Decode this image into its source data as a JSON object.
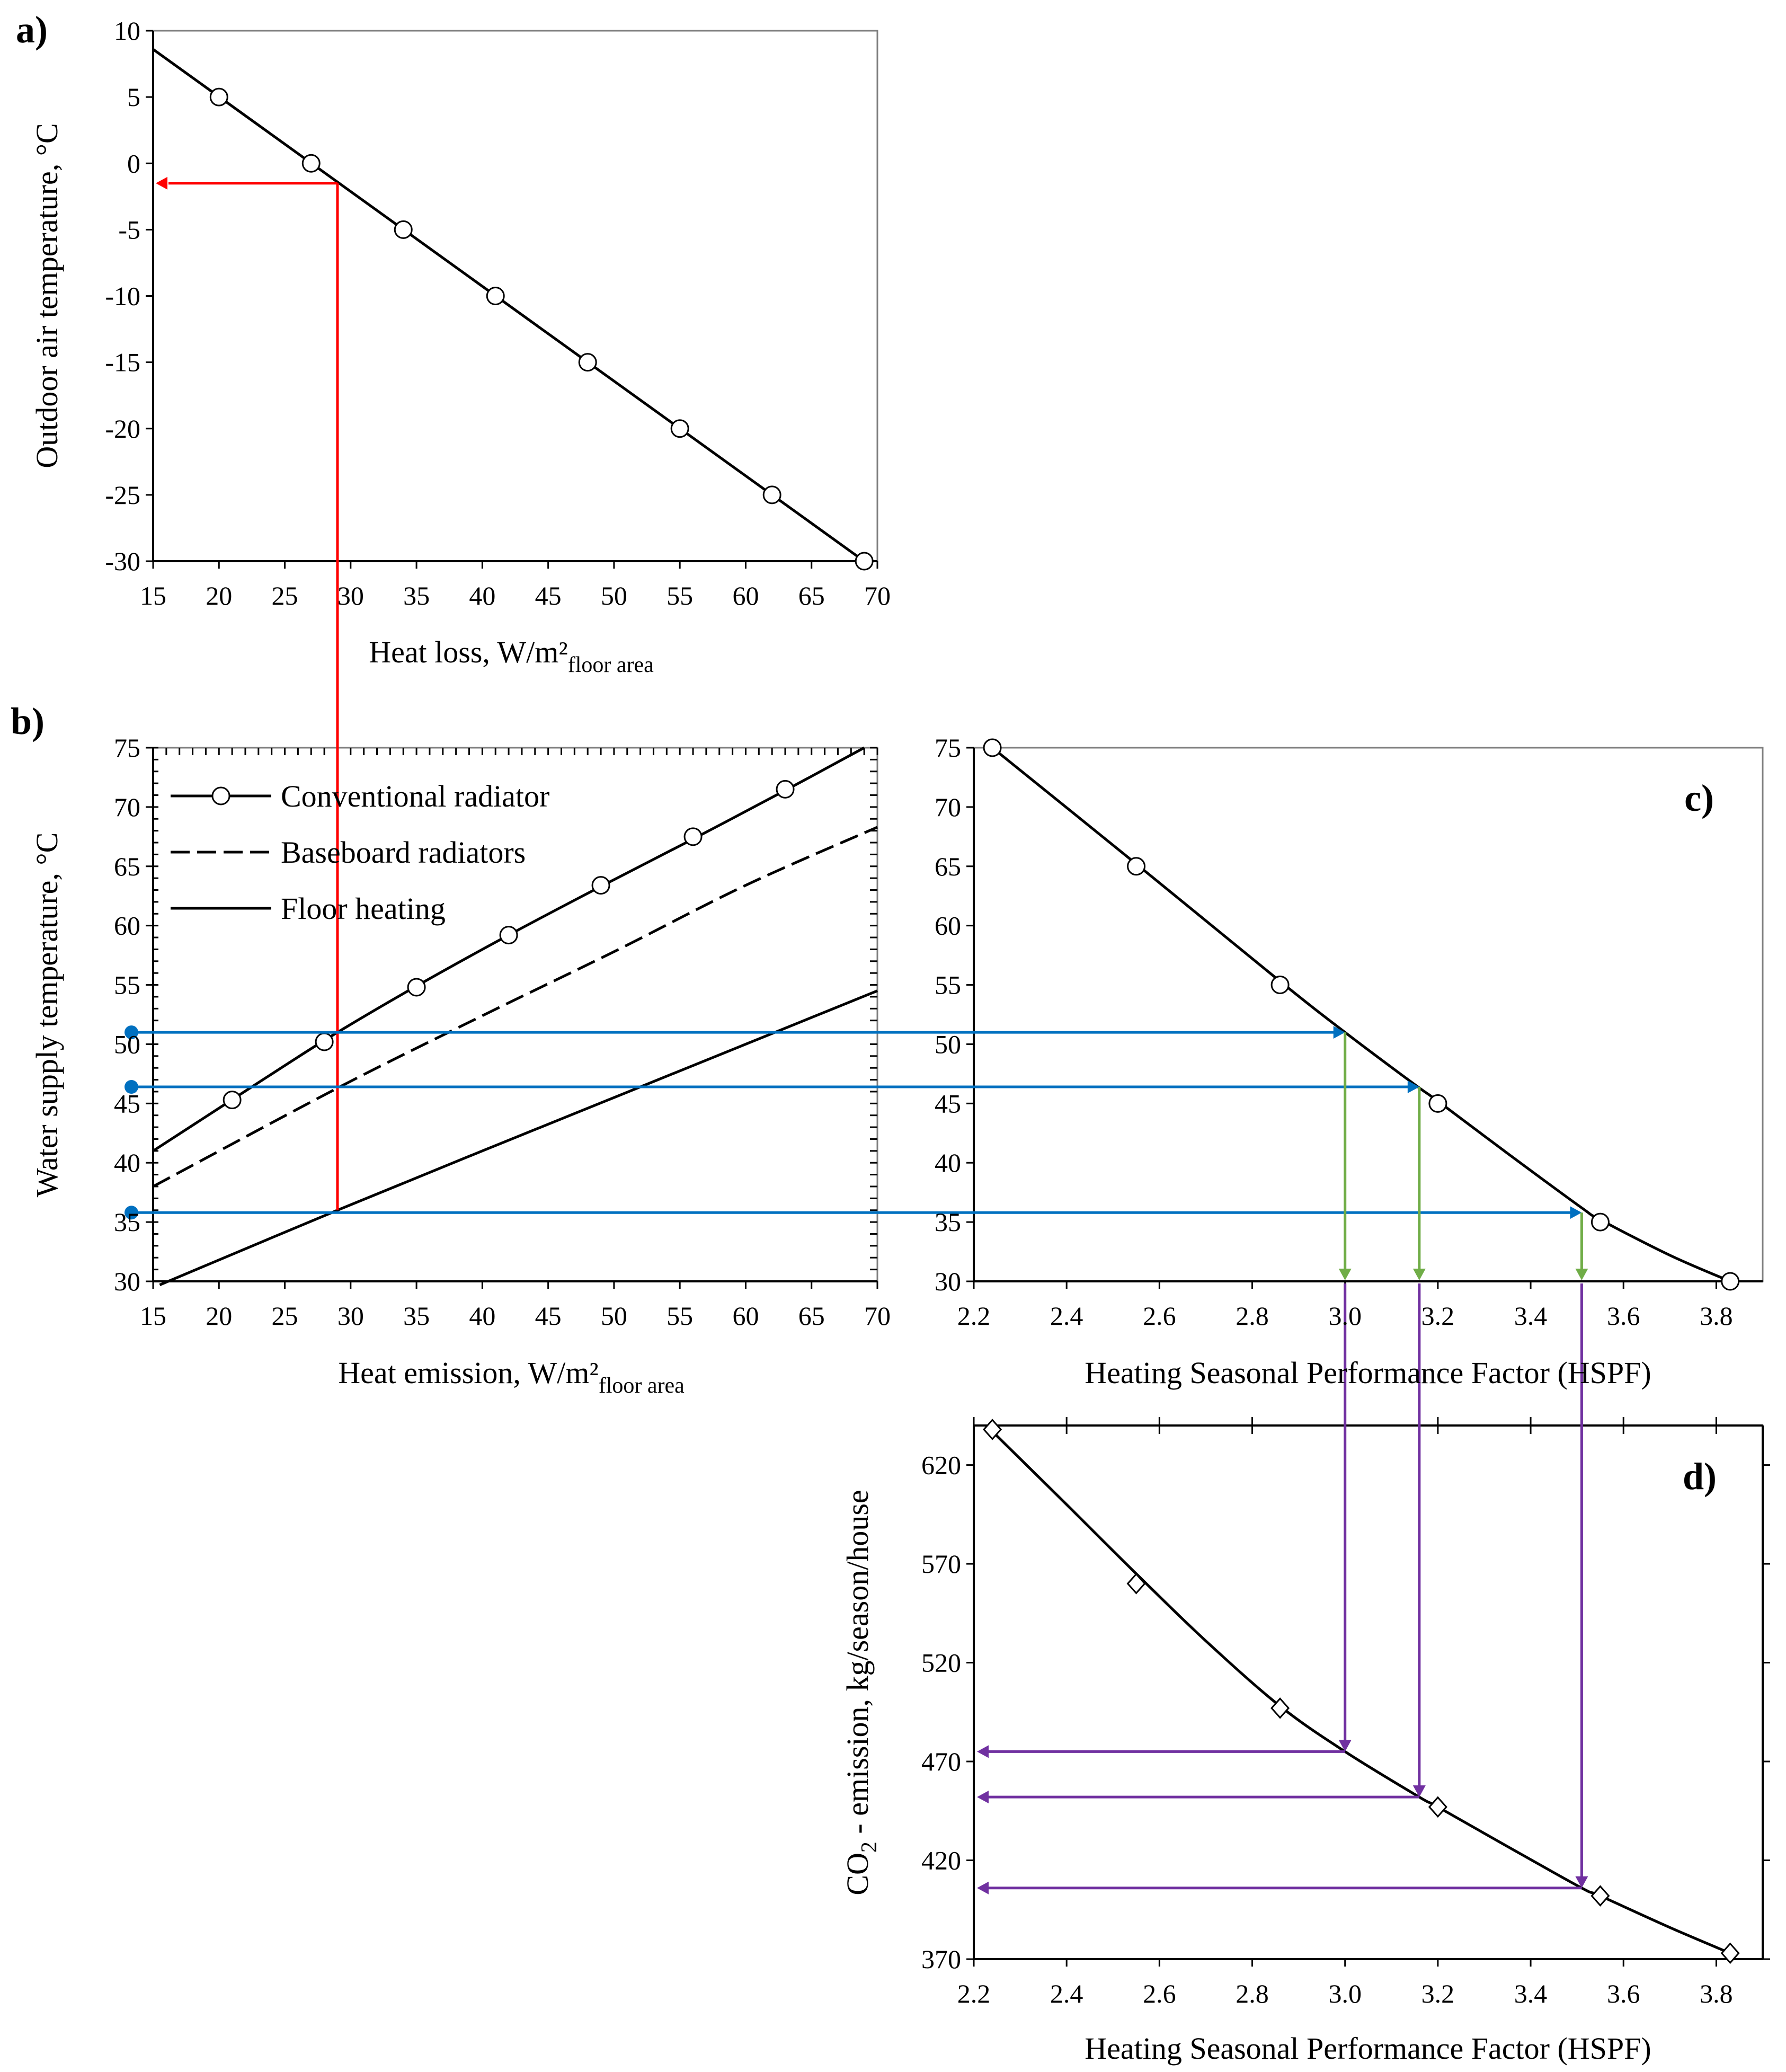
{
  "colors": {
    "red": "#ff0000",
    "blue": "#0070c0",
    "green": "#70ad47",
    "purple": "#7030a0",
    "line": "#000000"
  },
  "chart_data": [
    {
      "id": "a",
      "panel_label": "a)",
      "type": "line",
      "xlabel": "Heat loss, W/m²",
      "xlabel_sub": "floor area",
      "ylabel": "Outdoor air temperature, °C",
      "xlim": [
        15,
        70
      ],
      "ylim": [
        -30,
        10
      ],
      "xticks": [
        15,
        20,
        25,
        30,
        35,
        40,
        45,
        50,
        55,
        60,
        65,
        70
      ],
      "yticks": [
        -30,
        -25,
        -20,
        -15,
        -10,
        -5,
        0,
        5,
        10
      ],
      "series": [
        {
          "name": "Heat loss",
          "style": "solid",
          "marker": "circle",
          "line": [
            [
              15,
              8.6
            ],
            [
              69,
              -30
            ]
          ],
          "points": [
            [
              20,
              5
            ],
            [
              27,
              0
            ],
            [
              34,
              -5
            ],
            [
              41,
              -10
            ],
            [
              48,
              -15
            ],
            [
              55,
              -20
            ],
            [
              62,
              -25
            ],
            [
              69,
              -30
            ]
          ]
        }
      ],
      "annotations": [
        {
          "type": "arrow",
          "color": "red",
          "from": [
            29,
            -1.5
          ],
          "to": [
            15,
            -1.5
          ]
        }
      ]
    },
    {
      "id": "b",
      "panel_label": "b)",
      "type": "line",
      "xlabel": "Heat emission, W/m²",
      "xlabel_sub": "floor area",
      "ylabel": "Water supply temperature, °C",
      "xlim": [
        15,
        70
      ],
      "ylim": [
        30,
        75
      ],
      "xticks": [
        15,
        20,
        25,
        30,
        35,
        40,
        45,
        50,
        55,
        60,
        65,
        70
      ],
      "yticks": [
        30,
        35,
        40,
        45,
        50,
        55,
        60,
        65,
        70,
        75
      ],
      "series": [
        {
          "name": "Conventional radiator",
          "style": "solid",
          "marker": "circle",
          "line": [
            [
              15,
              41
            ],
            [
              20,
              44.6
            ],
            [
              25,
              48.2
            ],
            [
              29,
              51
            ],
            [
              35,
              54.9
            ],
            [
              42,
              59.2
            ],
            [
              49,
              63.3
            ],
            [
              56,
              67.3
            ],
            [
              63,
              71.4
            ],
            [
              69,
              75
            ]
          ],
          "points": [
            [
              21,
              45.3
            ],
            [
              28,
              50.2
            ],
            [
              35,
              54.8
            ],
            [
              42,
              59.2
            ],
            [
              49,
              63.4
            ],
            [
              56,
              67.5
            ],
            [
              63,
              71.5
            ]
          ]
        },
        {
          "name": "Baseboard radiators",
          "style": "dashed",
          "marker": "none",
          "line": [
            [
              15,
              38
            ],
            [
              29,
              46.3
            ],
            [
              40,
              52.4
            ],
            [
              50,
              57.8
            ],
            [
              60,
              63.4
            ],
            [
              70,
              68.3
            ]
          ],
          "points": []
        },
        {
          "name": "Floor heating",
          "style": "solid",
          "marker": "none",
          "line": [
            [
              15.5,
              29.7
            ],
            [
              29,
              36
            ],
            [
              40,
              41
            ],
            [
              50,
              45.5
            ],
            [
              60,
              50
            ],
            [
              70,
              54.5
            ]
          ],
          "points": []
        }
      ],
      "annotations": [
        {
          "type": "line",
          "color": "red",
          "from": [
            29,
            36
          ],
          "to": [
            29,
            -1.5
          ],
          "note": "vertical red line connecting panel b to panel a"
        },
        {
          "type": "arrow",
          "color": "blue",
          "from": [
            13.5,
            51
          ],
          "to": [
            3.0,
            51
          ],
          "note": "to panel c"
        },
        {
          "type": "arrow",
          "color": "blue",
          "from": [
            13.5,
            46.4
          ],
          "to": [
            3.16,
            46.4
          ],
          "note": "to panel c"
        },
        {
          "type": "arrow",
          "color": "blue",
          "from": [
            13.5,
            35.8
          ],
          "to": [
            3.51,
            35.8
          ],
          "note": "to panel c"
        }
      ]
    },
    {
      "id": "c",
      "panel_label": "c)",
      "type": "line",
      "xlabel": "Heating Seasonal Performance Factor (HSPF)",
      "ylabel": "",
      "xlim": [
        2.2,
        3.9
      ],
      "ylim": [
        30,
        75
      ],
      "xticks": [
        2.2,
        2.4,
        2.6,
        2.8,
        3.0,
        3.2,
        3.4,
        3.6,
        3.8
      ],
      "yticks": [
        30,
        35,
        40,
        45,
        50,
        55,
        60,
        65,
        70,
        75
      ],
      "series": [
        {
          "name": "HSPF",
          "style": "solid",
          "marker": "circle",
          "line": [
            [
              2.24,
              75
            ],
            [
              2.55,
              65.2
            ],
            [
              2.86,
              55.3
            ],
            [
              3.0,
              51
            ],
            [
              3.15,
              46.6
            ],
            [
              3.2,
              45.2
            ],
            [
              3.35,
              40.8
            ],
            [
              3.51,
              36.2
            ],
            [
              3.55,
              35.2
            ],
            [
              3.7,
              32.2
            ],
            [
              3.83,
              30
            ]
          ],
          "points": [
            [
              2.24,
              75
            ],
            [
              2.55,
              65
            ],
            [
              2.86,
              55
            ],
            [
              3.2,
              45
            ],
            [
              3.55,
              35
            ],
            [
              3.83,
              30
            ]
          ]
        }
      ],
      "annotations": [
        {
          "type": "arrow",
          "color": "green",
          "from": [
            3.0,
            51
          ],
          "to": [
            3.0,
            30
          ]
        },
        {
          "type": "arrow",
          "color": "green",
          "from": [
            3.16,
            46.4
          ],
          "to": [
            3.16,
            30
          ]
        },
        {
          "type": "arrow",
          "color": "green",
          "from": [
            3.51,
            35.8
          ],
          "to": [
            3.51,
            30
          ]
        }
      ]
    },
    {
      "id": "d",
      "panel_label": "d)",
      "type": "line",
      "xlabel": "Heating Seasonal Performance Factor (HSPF)",
      "ylabel": "CO",
      "ylabel_sub": "2",
      "ylabel_rest": " - emission, kg/season/house",
      "xlim": [
        2.2,
        3.9
      ],
      "ylim": [
        370,
        640
      ],
      "xticks": [
        2.2,
        2.4,
        2.6,
        2.8,
        3.0,
        3.2,
        3.4,
        3.6,
        3.8
      ],
      "yticks": [
        370,
        420,
        470,
        520,
        570,
        620
      ],
      "series": [
        {
          "name": "CO2 emission",
          "style": "solid",
          "marker": "diamond",
          "line": [
            [
              2.24,
              637
            ],
            [
              2.4,
              600
            ],
            [
              2.55,
              565
            ],
            [
              2.7,
              531
            ],
            [
              2.86,
              498
            ],
            [
              3.0,
              475
            ],
            [
              3.16,
              452
            ],
            [
              3.2,
              447
            ],
            [
              3.35,
              427
            ],
            [
              3.51,
              406
            ],
            [
              3.55,
              402
            ],
            [
              3.7,
              386
            ],
            [
              3.83,
              373
            ]
          ],
          "points": [
            [
              2.24,
              638
            ],
            [
              2.55,
              560
            ],
            [
              2.86,
              497
            ],
            [
              3.2,
              447
            ],
            [
              3.55,
              402
            ],
            [
              3.83,
              373
            ]
          ]
        }
      ],
      "annotations": [
        {
          "type": "line",
          "color": "purple",
          "from": [
            3.0,
            30
          ],
          "to": [
            3.0,
            475
          ],
          "note": "vertical purple line from panel c to panel d"
        },
        {
          "type": "line",
          "color": "purple",
          "from": [
            3.16,
            30
          ],
          "to": [
            3.16,
            452
          ]
        },
        {
          "type": "line",
          "color": "purple",
          "from": [
            3.51,
            30
          ],
          "to": [
            3.51,
            406
          ]
        },
        {
          "type": "arrow",
          "color": "purple",
          "from": [
            3.0,
            475
          ],
          "to": [
            2.2,
            475
          ]
        },
        {
          "type": "arrow",
          "color": "purple",
          "from": [
            3.16,
            452
          ],
          "to": [
            2.2,
            452
          ]
        },
        {
          "type": "arrow",
          "color": "purple",
          "from": [
            3.51,
            406
          ],
          "to": [
            2.2,
            406
          ]
        }
      ]
    }
  ]
}
